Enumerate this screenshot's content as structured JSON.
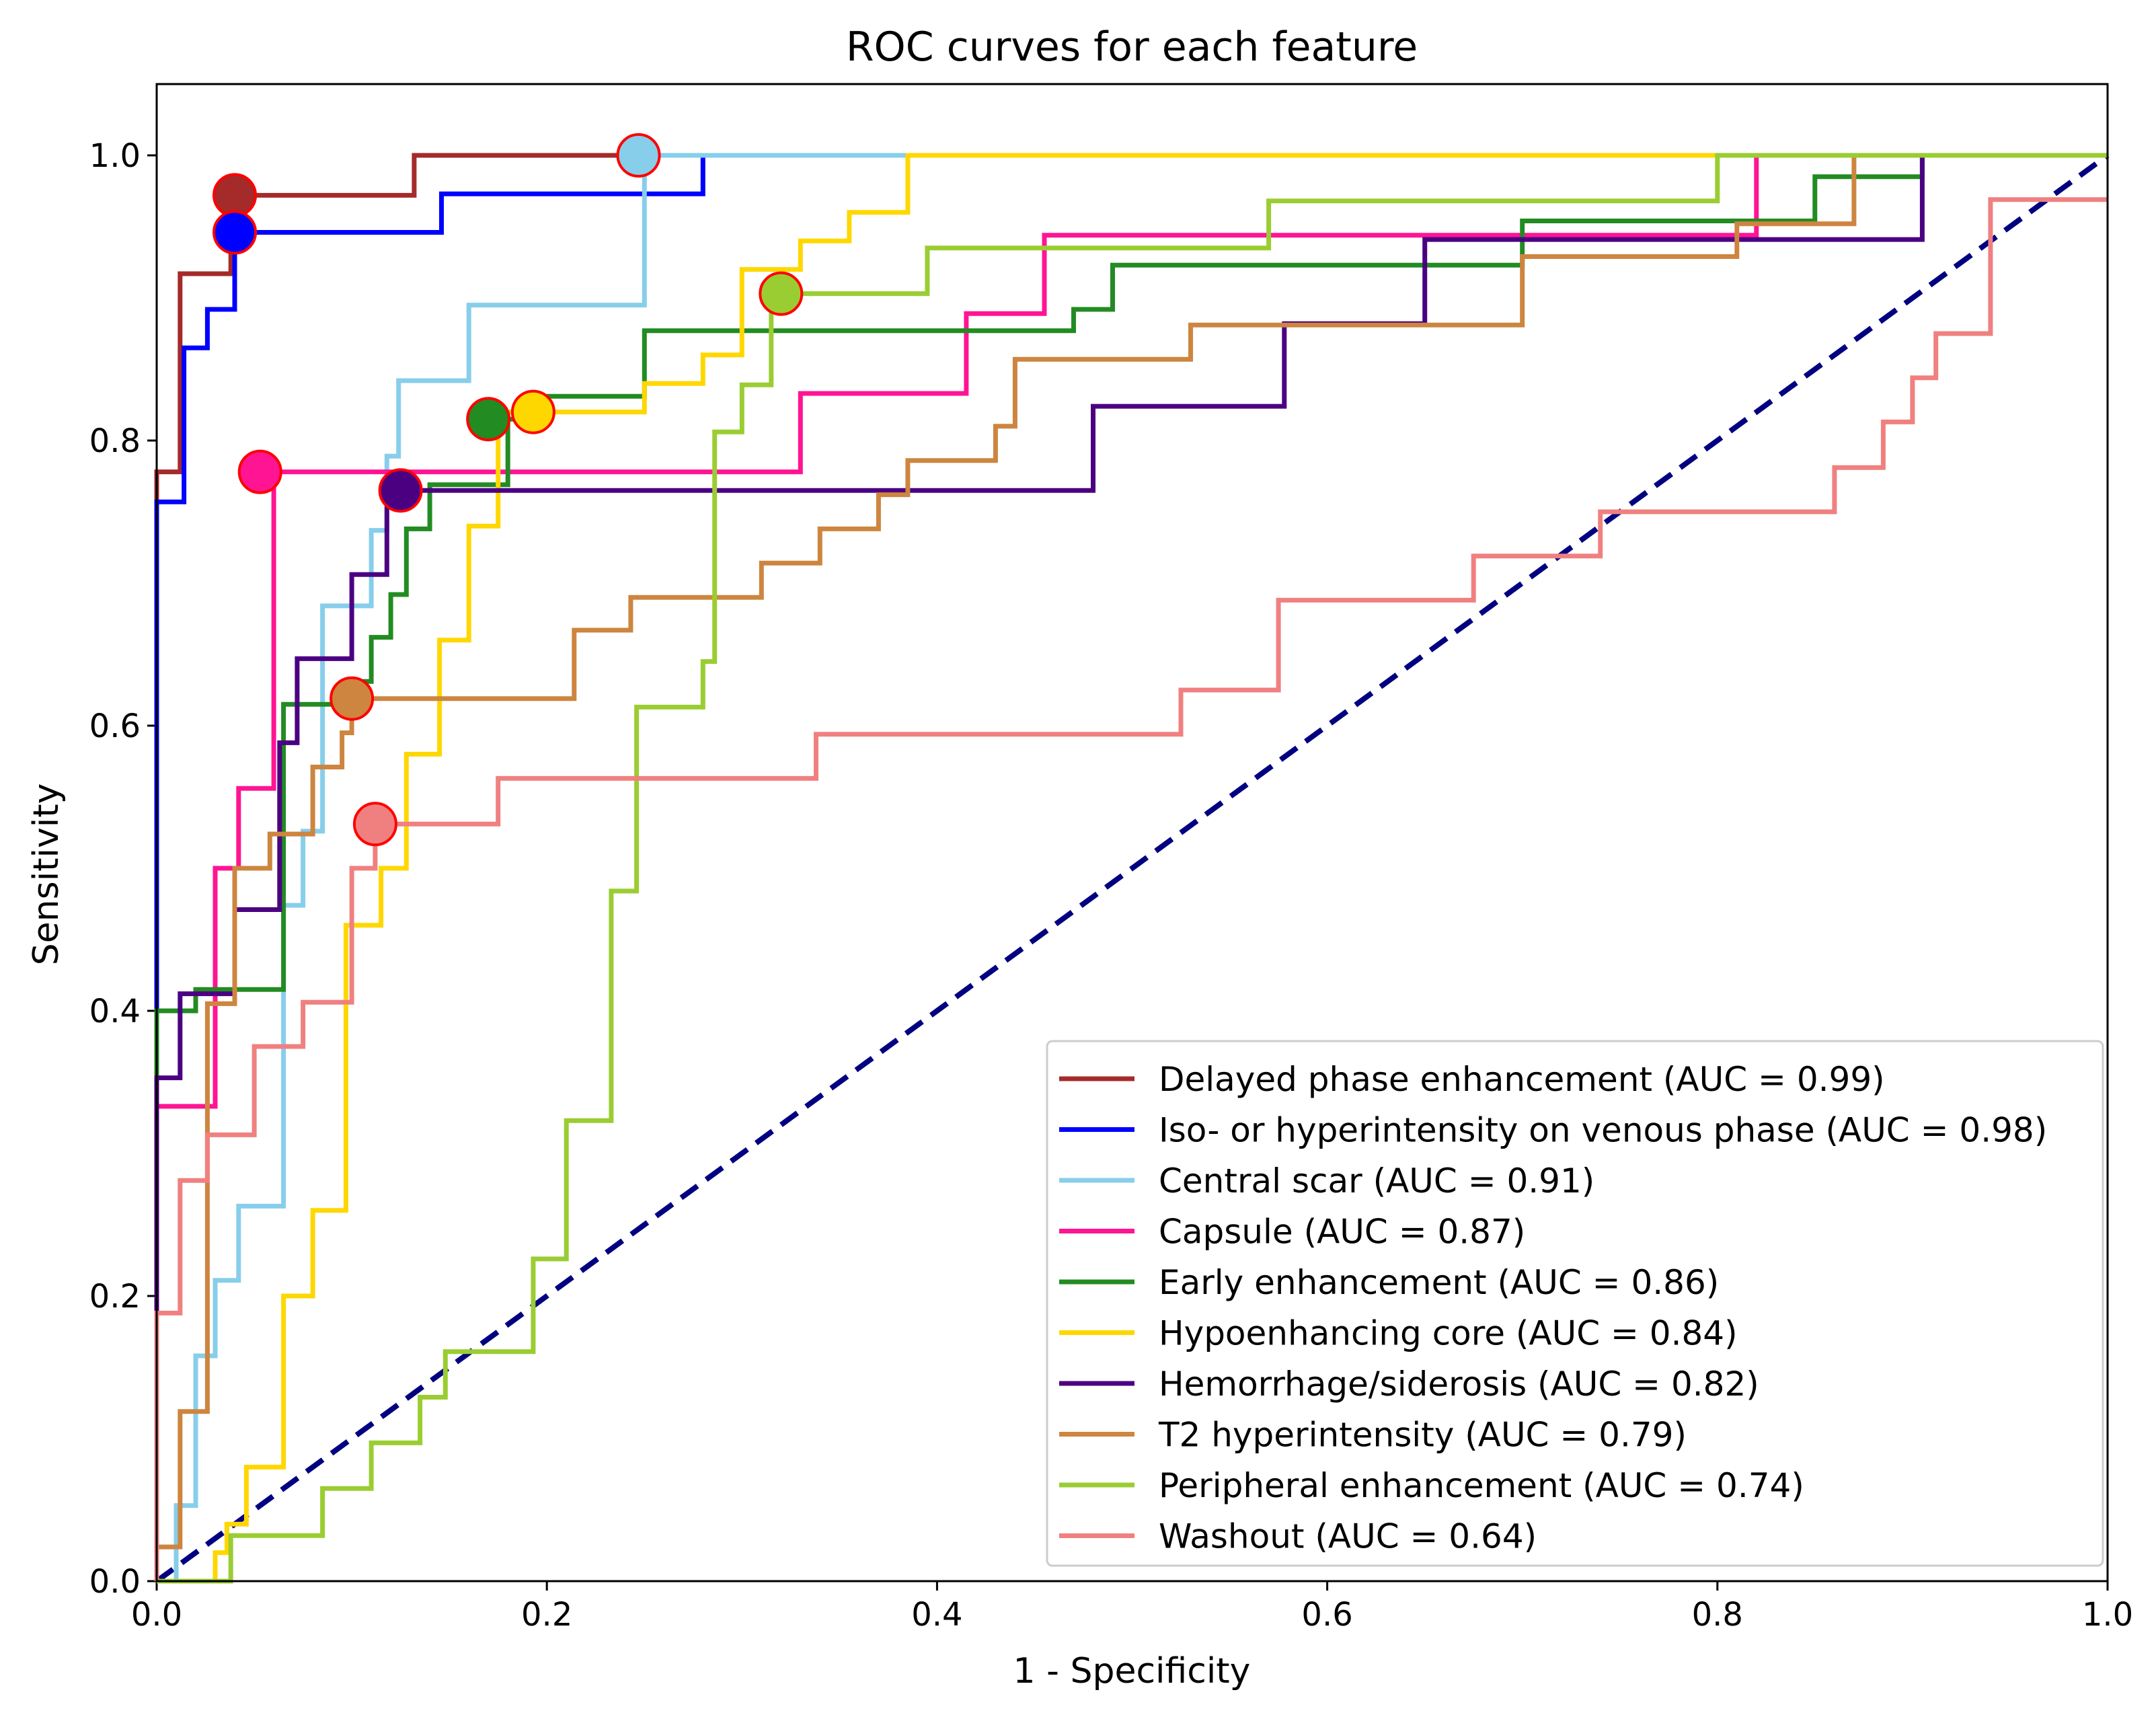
{
  "chart_data": {
    "type": "line",
    "title": "ROC curves for each feature",
    "xlabel": "1 - Specificity",
    "ylabel": "Sensitivity",
    "xlim": [
      0.0,
      1.0
    ],
    "ylim": [
      0.0,
      1.05
    ],
    "xticks": [
      "0.0",
      "0.2",
      "0.4",
      "0.6",
      "0.8",
      "1.0"
    ],
    "yticks": [
      "0.0",
      "0.2",
      "0.4",
      "0.6",
      "0.8",
      "1.0"
    ],
    "grid": false,
    "legend_position": "lower-right",
    "reference_line": {
      "name": "chance",
      "color": "#000080",
      "dash": true,
      "x": [
        0,
        1
      ],
      "y": [
        0,
        1
      ]
    },
    "series": [
      {
        "name": "Delayed phase enhancement (AUC = 0.99)",
        "color": "#a52a2a",
        "x": [
          0,
          0,
          0.012,
          0.012,
          0.018,
          0.018,
          0.038,
          0.038,
          0.132,
          0.132,
          0.25,
          1
        ],
        "y": [
          0,
          0.778,
          0.778,
          0.917,
          0.917,
          0.917,
          0.917,
          0.972,
          0.972,
          1.0,
          1.0,
          1.0
        ],
        "marker": [
          0.04,
          0.972
        ]
      },
      {
        "name": "Iso- or hyperintensity on venous phase (AUC = 0.98)",
        "color": "#0000ff",
        "x": [
          0,
          0,
          0.014,
          0.014,
          0.026,
          0.026,
          0.04,
          0.04,
          0.146,
          0.146,
          0.28,
          0.28,
          1
        ],
        "y": [
          0,
          0.757,
          0.757,
          0.865,
          0.865,
          0.892,
          0.892,
          0.946,
          0.946,
          0.973,
          0.973,
          1.0,
          1.0
        ],
        "marker": [
          0.04,
          0.946
        ]
      },
      {
        "name": "Central scar (AUC = 0.91)",
        "color": "#87ceeb",
        "x": [
          0,
          0.01,
          0.01,
          0.02,
          0.02,
          0.03,
          0.03,
          0.042,
          0.042,
          0.065,
          0.065,
          0.075,
          0.075,
          0.085,
          0.085,
          0.1,
          0.1,
          0.11,
          0.11,
          0.118,
          0.118,
          0.124,
          0.124,
          0.128,
          0.128,
          0.16,
          0.16,
          0.19,
          0.19,
          0.21,
          0.21,
          0.23,
          0.23,
          0.25,
          0.25,
          0.27,
          1
        ],
        "y": [
          0,
          0,
          0.053,
          0.053,
          0.158,
          0.158,
          0.211,
          0.211,
          0.263,
          0.263,
          0.474,
          0.474,
          0.526,
          0.526,
          0.684,
          0.684,
          0.684,
          0.684,
          0.737,
          0.737,
          0.789,
          0.789,
          0.842,
          0.842,
          0.842,
          0.842,
          0.895,
          0.895,
          0.895,
          0.895,
          0.895,
          0.895,
          0.895,
          0.895,
          1.0,
          1.0,
          1.0
        ],
        "marker": [
          0.247,
          1.0
        ]
      },
      {
        "name": "Capsule (AUC = 0.87)",
        "color": "#ff1493",
        "x": [
          0,
          0,
          0.03,
          0.03,
          0.042,
          0.042,
          0.06,
          0.06,
          0.075,
          0.075,
          0.33,
          0.33,
          0.415,
          0.415,
          0.455,
          0.455,
          0.82,
          0.82,
          1
        ],
        "y": [
          0,
          0.333,
          0.333,
          0.5,
          0.5,
          0.556,
          0.556,
          0.778,
          0.778,
          0.778,
          0.778,
          0.833,
          0.833,
          0.889,
          0.889,
          0.944,
          0.944,
          1.0,
          1.0
        ],
        "marker": [
          0.053,
          0.778
        ]
      },
      {
        "name": "Early enhancement (AUC = 0.86)",
        "color": "#228b22",
        "x": [
          0,
          0,
          0.02,
          0.02,
          0.065,
          0.065,
          0.1,
          0.1,
          0.11,
          0.11,
          0.12,
          0.12,
          0.128,
          0.128,
          0.14,
          0.14,
          0.18,
          0.18,
          0.2,
          0.2,
          0.25,
          0.25,
          0.47,
          0.47,
          0.49,
          0.49,
          0.59,
          0.59,
          0.7,
          0.7,
          0.85,
          0.85,
          0.905,
          0.905,
          1
        ],
        "y": [
          0,
          0.4,
          0.4,
          0.415,
          0.415,
          0.615,
          0.615,
          0.631,
          0.631,
          0.662,
          0.662,
          0.692,
          0.692,
          0.738,
          0.738,
          0.769,
          0.769,
          0.815,
          0.815,
          0.831,
          0.831,
          0.877,
          0.877,
          0.892,
          0.892,
          0.923,
          0.923,
          0.923,
          0.923,
          0.954,
          0.954,
          0.985,
          0.985,
          1.0,
          1.0
        ],
        "marker": [
          0.17,
          0.815
        ]
      },
      {
        "name": "Hypoenhancing core (AUC = 0.84)",
        "color": "#ffd700",
        "x": [
          0,
          0.03,
          0.03,
          0.036,
          0.036,
          0.046,
          0.046,
          0.065,
          0.065,
          0.08,
          0.08,
          0.097,
          0.097,
          0.115,
          0.115,
          0.128,
          0.128,
          0.145,
          0.145,
          0.16,
          0.16,
          0.175,
          0.175,
          0.194,
          0.194,
          0.25,
          0.25,
          0.28,
          0.28,
          0.3,
          0.3,
          0.33,
          0.33,
          0.355,
          0.355,
          0.385,
          0.385,
          1
        ],
        "y": [
          0,
          0,
          0.02,
          0.02,
          0.04,
          0.04,
          0.08,
          0.08,
          0.2,
          0.2,
          0.26,
          0.26,
          0.46,
          0.46,
          0.5,
          0.5,
          0.58,
          0.58,
          0.66,
          0.66,
          0.74,
          0.74,
          0.82,
          0.82,
          0.82,
          0.82,
          0.84,
          0.84,
          0.86,
          0.86,
          0.92,
          0.92,
          0.94,
          0.94,
          0.96,
          0.96,
          1.0,
          1.0
        ],
        "marker": [
          0.193,
          0.82
        ]
      },
      {
        "name": "Hemorrhage/siderosis (AUC = 0.82)",
        "color": "#4b0082",
        "x": [
          0,
          0,
          0.012,
          0.012,
          0.04,
          0.04,
          0.063,
          0.063,
          0.072,
          0.072,
          0.1,
          0.1,
          0.11,
          0.11,
          0.118,
          0.118,
          0.122,
          0.122,
          0.128,
          0.128,
          0.48,
          0.48,
          0.578,
          0.578,
          0.65,
          0.65,
          0.905,
          0.905,
          1
        ],
        "y": [
          0,
          0.353,
          0.353,
          0.412,
          0.412,
          0.471,
          0.471,
          0.588,
          0.588,
          0.647,
          0.647,
          0.706,
          0.706,
          0.706,
          0.706,
          0.765,
          0.765,
          0.765,
          0.765,
          0.765,
          0.765,
          0.824,
          0.824,
          0.882,
          0.882,
          0.941,
          0.941,
          1.0,
          1.0
        ],
        "marker": [
          0.125,
          0.765
        ]
      },
      {
        "name": "T2 hyperintensity (AUC = 0.79)",
        "color": "#cd853f",
        "x": [
          0,
          0,
          0.012,
          0.012,
          0.026,
          0.026,
          0.04,
          0.04,
          0.058,
          0.058,
          0.08,
          0.08,
          0.095,
          0.095,
          0.1,
          0.1,
          0.214,
          0.214,
          0.243,
          0.243,
          0.31,
          0.31,
          0.34,
          0.34,
          0.37,
          0.37,
          0.385,
          0.385,
          0.43,
          0.43,
          0.44,
          0.44,
          0.53,
          0.53,
          0.56,
          0.56,
          0.7,
          0.7,
          0.81,
          0.81,
          0.87,
          0.87,
          1
        ],
        "y": [
          0,
          0.024,
          0.024,
          0.119,
          0.119,
          0.405,
          0.405,
          0.5,
          0.5,
          0.524,
          0.524,
          0.571,
          0.571,
          0.595,
          0.595,
          0.619,
          0.619,
          0.667,
          0.667,
          0.69,
          0.69,
          0.714,
          0.714,
          0.738,
          0.738,
          0.762,
          0.762,
          0.786,
          0.786,
          0.81,
          0.81,
          0.857,
          0.857,
          0.881,
          0.881,
          0.881,
          0.881,
          0.929,
          0.929,
          0.952,
          0.952,
          1.0,
          1.0
        ],
        "marker": [
          0.1,
          0.619
        ]
      },
      {
        "name": "Peripheral enhancement (AUC = 0.74)",
        "color": "#9acd32",
        "x": [
          0,
          0.038,
          0.038,
          0.085,
          0.085,
          0.11,
          0.11,
          0.135,
          0.135,
          0.148,
          0.148,
          0.193,
          0.193,
          0.21,
          0.21,
          0.233,
          0.233,
          0.246,
          0.246,
          0.28,
          0.28,
          0.286,
          0.286,
          0.3,
          0.3,
          0.3,
          0.3,
          0.315,
          0.315,
          0.32,
          0.32,
          0.395,
          0.395,
          0.57,
          0.57,
          0.8,
          0.8,
          1
        ],
        "y": [
          0,
          0,
          0.032,
          0.032,
          0.065,
          0.065,
          0.097,
          0.097,
          0.129,
          0.129,
          0.161,
          0.161,
          0.226,
          0.226,
          0.323,
          0.323,
          0.484,
          0.484,
          0.613,
          0.613,
          0.645,
          0.645,
          0.806,
          0.806,
          0.806,
          0.806,
          0.839,
          0.839,
          0.903,
          0.903,
          0.903,
          0.903,
          0.935,
          0.935,
          0.968,
          0.968,
          1.0,
          1.0
        ],
        "marker": [
          0.32,
          0.903
        ]
      },
      {
        "name": "Washout (AUC = 0.64)",
        "color": "#f08080",
        "x": [
          0,
          0,
          0.012,
          0.012,
          0.026,
          0.026,
          0.05,
          0.05,
          0.075,
          0.075,
          0.1,
          0.1,
          0.112,
          0.112,
          0.175,
          0.175,
          0.338,
          0.338,
          0.525,
          0.525,
          0.575,
          0.575,
          0.675,
          0.675,
          0.74,
          0.74,
          0.77,
          0.77,
          0.86,
          0.86,
          0.885,
          0.885,
          0.9,
          0.9,
          0.912,
          0.912,
          0.94,
          0.94,
          1
        ],
        "y": [
          0,
          0.188,
          0.188,
          0.281,
          0.281,
          0.313,
          0.313,
          0.375,
          0.375,
          0.406,
          0.406,
          0.5,
          0.5,
          0.531,
          0.531,
          0.563,
          0.563,
          0.594,
          0.594,
          0.625,
          0.625,
          0.688,
          0.688,
          0.719,
          0.719,
          0.75,
          0.75,
          0.75,
          0.75,
          0.781,
          0.781,
          0.813,
          0.813,
          0.844,
          0.844,
          0.875,
          0.875,
          0.969,
          0.969
        ],
        "marker": [
          0.112,
          0.531
        ]
      }
    ]
  }
}
